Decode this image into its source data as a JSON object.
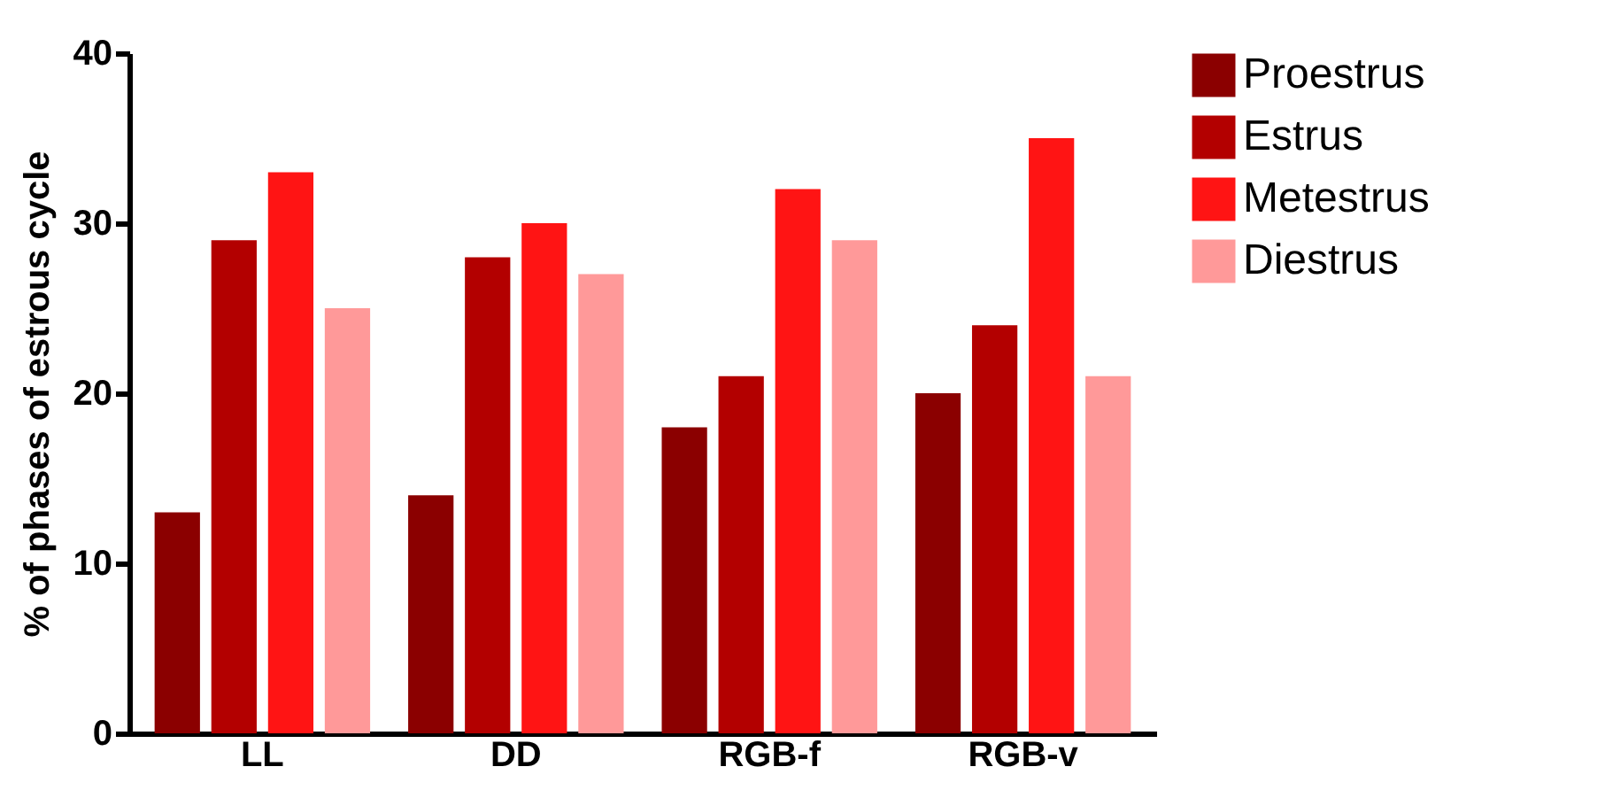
{
  "chart_data": {
    "type": "bar",
    "ylabel": "% of phases of estrous cycle",
    "categories": [
      "LL",
      "DD",
      "RGB-f",
      "RGB-v"
    ],
    "series": [
      {
        "name": "Proestrus",
        "color": "#8b0000",
        "values": [
          13,
          14,
          18,
          20
        ]
      },
      {
        "name": "Estrus",
        "color": "#b30000",
        "values": [
          29,
          28,
          21,
          24
        ]
      },
      {
        "name": "Metestrus",
        "color": "#ff1414",
        "values": [
          33,
          30,
          32,
          35
        ]
      },
      {
        "name": "Diestrus",
        "color": "#ff9999",
        "values": [
          25,
          27,
          29,
          21
        ]
      }
    ],
    "ylim": [
      0,
      40
    ],
    "yticks": [
      0,
      10,
      20,
      30,
      40
    ],
    "grid": false,
    "legend": "top right"
  }
}
